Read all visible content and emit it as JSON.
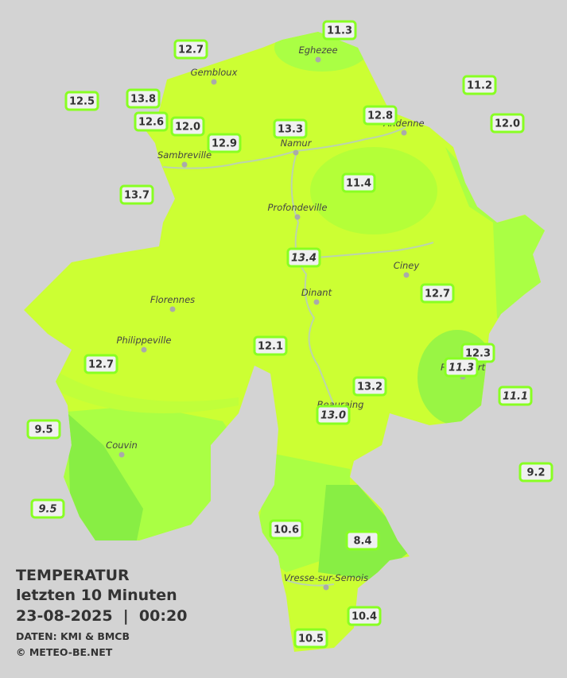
{
  "title": {
    "line1": "TEMPERATUR",
    "line2": "letzten 10 Minuten",
    "line3": "23-08-2025  |  00:20",
    "source": "DATEN: KMI & BMCB",
    "copyright": "© METEO-BE.NET"
  },
  "cities": [
    "Eghezee",
    "Gembloux",
    "Andenne",
    "Namur",
    "Sambreville",
    "Profondeville",
    "Ciney",
    "Dinant",
    "Florennes",
    "Philippeville",
    "Rochefort",
    "Beauraing",
    "Couvin",
    "Vresse-sur-Semois"
  ],
  "stations": [
    {
      "value": "12.7",
      "italic": false
    },
    {
      "value": "11.3",
      "italic": false
    },
    {
      "value": "11.2",
      "italic": false
    },
    {
      "value": "12.5",
      "italic": false
    },
    {
      "value": "13.8",
      "italic": false
    },
    {
      "value": "12.8",
      "italic": false
    },
    {
      "value": "12.0",
      "italic": false
    },
    {
      "value": "12.6",
      "italic": false
    },
    {
      "value": "12.0",
      "italic": false
    },
    {
      "value": "13.3",
      "italic": false
    },
    {
      "value": "12.9",
      "italic": false
    },
    {
      "value": "13.7",
      "italic": false
    },
    {
      "value": "11.4",
      "italic": false
    },
    {
      "value": "13.4",
      "italic": true
    },
    {
      "value": "12.7",
      "italic": false
    },
    {
      "value": "12.1",
      "italic": false
    },
    {
      "value": "12.3",
      "italic": false
    },
    {
      "value": "11.3",
      "italic": true
    },
    {
      "value": "12.7",
      "italic": false
    },
    {
      "value": "11.1",
      "italic": true
    },
    {
      "value": "13.2",
      "italic": false
    },
    {
      "value": "13.0",
      "italic": true
    },
    {
      "value": "9.5",
      "italic": false
    },
    {
      "value": "9.2",
      "italic": false
    },
    {
      "value": "9.5",
      "italic": true
    },
    {
      "value": "10.6",
      "italic": false
    },
    {
      "value": "8.4",
      "italic": false
    },
    {
      "value": "10.4",
      "italic": false
    },
    {
      "value": "10.5",
      "italic": false
    }
  ]
}
